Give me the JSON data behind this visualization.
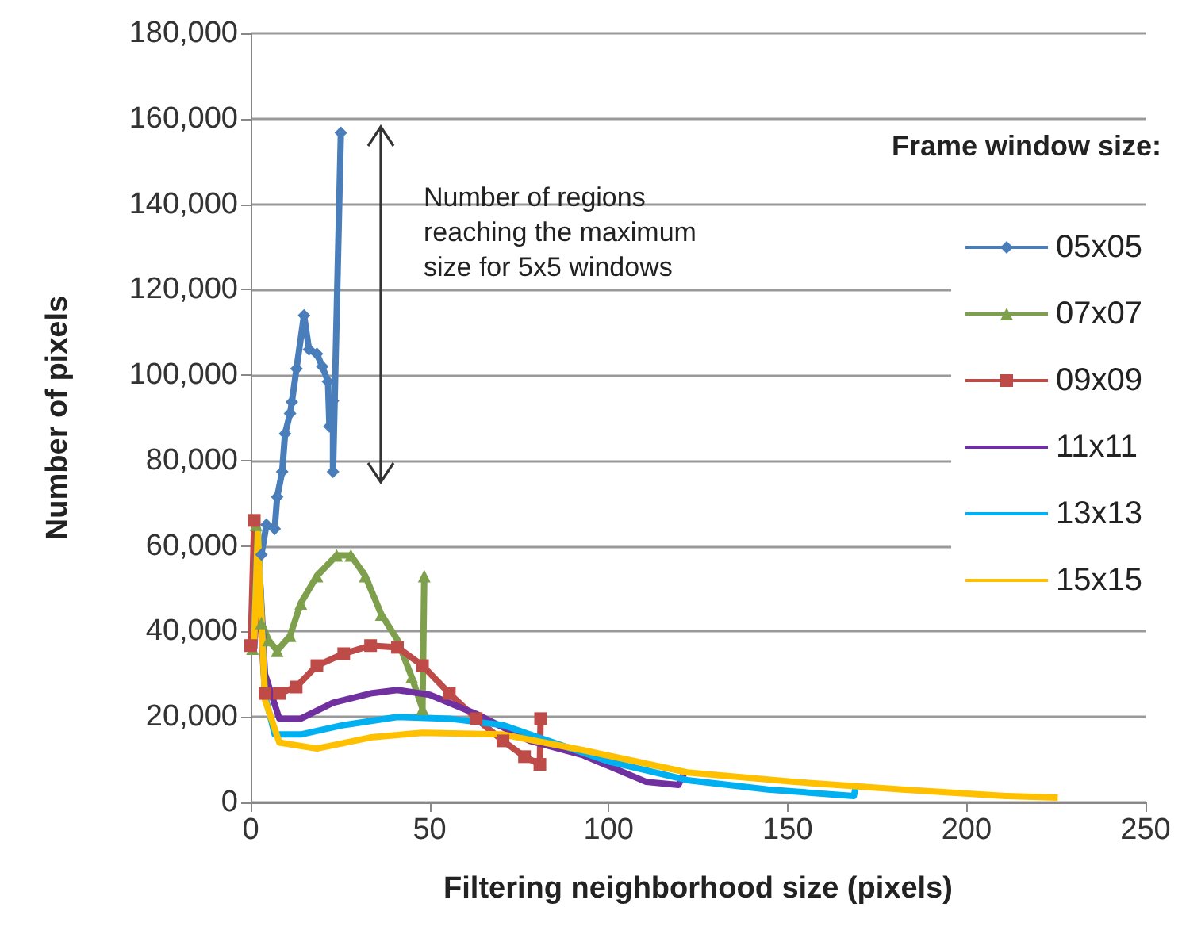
{
  "chart_data": {
    "type": "line",
    "xlabel": "Filtering neighborhood size (pixels)",
    "ylabel": "Number of pixels",
    "legend_title": "Frame window size:",
    "legend": "right",
    "grid": "y",
    "xlim": [
      0,
      250
    ],
    "xticks": [
      0,
      50,
      100,
      150,
      200,
      250
    ],
    "ylim": [
      0,
      180000
    ],
    "yticks": [
      0,
      {
        "value": 20000,
        "label": "20,000"
      },
      {
        "value": 40000,
        "label": "40,000"
      },
      {
        "value": 60000,
        "label": "60,000"
      },
      {
        "value": 80000,
        "label": "80,000"
      },
      {
        "value": 100000,
        "label": "100,000"
      },
      {
        "value": 120000,
        "label": "120,000"
      },
      {
        "value": 140000,
        "label": "140,000"
      },
      {
        "value": 160000,
        "label": "160,000"
      },
      {
        "value": 180000,
        "label": "180,000"
      }
    ],
    "annotations": [
      "Number of regions reaching the maximum size for 5x5 windows"
    ],
    "series": [
      {
        "name": "05x05",
        "color": "#4a7ebb",
        "marker": "diamond",
        "x": [
          3,
          4.4,
          6.7,
          7.4,
          8.8,
          9.6,
          11,
          11.5,
          12.8,
          14.9,
          16.3,
          18.5,
          20,
          21.6,
          22,
          23,
          23,
          25.2
        ],
        "values": [
          58000,
          65000,
          64000,
          71500,
          77400,
          86300,
          91000,
          93700,
          101500,
          114000,
          106000,
          105000,
          102000,
          98500,
          88000,
          94000,
          77400,
          156700
        ]
      },
      {
        "name": "07x07",
        "color": "#7ea04d",
        "marker": "triangle",
        "x": [
          0.5,
          1.5,
          3,
          5,
          7.4,
          11,
          14,
          18.5,
          24,
          28,
          32,
          36.5,
          41,
          45,
          48,
          48.5
        ],
        "values": [
          36000,
          65000,
          42000,
          38000,
          35500,
          39000,
          46600,
          53000,
          57800,
          57800,
          53000,
          44000,
          38000,
          29300,
          21900,
          53000
        ]
      },
      {
        "name": "09x09",
        "color": "#be4b48",
        "marker": "square",
        "x": [
          0,
          1,
          4,
          8,
          12.7,
          18.5,
          26,
          33.5,
          41,
          48,
          55.5,
          63,
          70.5,
          76.5,
          80.8,
          81
        ],
        "values": [
          36700,
          66000,
          25500,
          25500,
          27000,
          32000,
          34800,
          36700,
          36300,
          32000,
          25500,
          19600,
          14400,
          10700,
          8900,
          19600
        ]
      },
      {
        "name": "11x11",
        "color": "#7030a0",
        "marker": "none",
        "x": [
          1,
          2,
          4,
          8,
          14,
          23,
          33.5,
          41,
          50,
          63,
          78,
          93,
          100,
          110.5,
          119.5,
          121
        ],
        "values": [
          36000,
          62000,
          30000,
          19600,
          19600,
          23300,
          25500,
          26300,
          25200,
          20700,
          14400,
          11000,
          8500,
          4800,
          4100,
          6700
        ]
      },
      {
        "name": "13x13",
        "color": "#00b0f0",
        "marker": "none",
        "x": [
          1,
          2,
          4,
          6.7,
          14,
          26,
          41,
          55.5,
          70.5,
          78,
          100,
          122,
          144.5,
          168.5,
          169
        ],
        "values": [
          40000,
          64000,
          25000,
          15900,
          15900,
          18100,
          20000,
          19600,
          18100,
          15900,
          9600,
          5200,
          3000,
          1500,
          3300
        ]
      },
      {
        "name": "15x15",
        "color": "#ffc000",
        "marker": "none",
        "x": [
          1,
          2,
          4,
          8,
          18.5,
          33.5,
          48,
          70.5,
          93,
          122,
          152,
          182,
          211,
          225.5
        ],
        "values": [
          38000,
          63000,
          24000,
          14000,
          12600,
          15200,
          16300,
          15900,
          12200,
          7000,
          4800,
          3000,
          1500,
          1100
        ]
      }
    ]
  }
}
